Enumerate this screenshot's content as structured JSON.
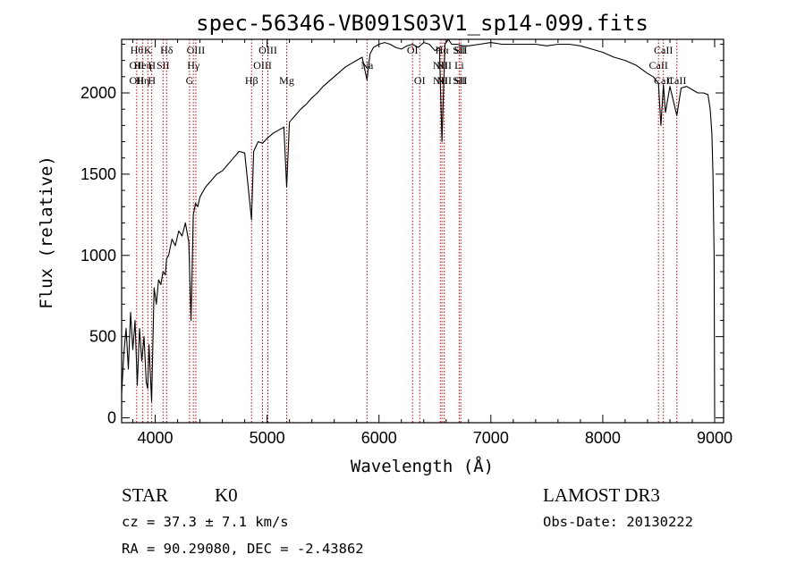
{
  "chart_data": {
    "type": "line",
    "title": "spec-56346-VB091S03V1_sp14-099.fits",
    "xlabel": "Wavelength (Å)",
    "ylabel": "Flux (relative)",
    "xlim": [
      3700,
      9080
    ],
    "ylim": [
      -30,
      2330
    ],
    "x_ticks": [
      4000,
      5000,
      6000,
      7000,
      8000,
      9000
    ],
    "y_ticks": [
      0,
      500,
      1000,
      1500,
      2000
    ],
    "grid": false,
    "line_color": "#000000",
    "marker_color": "#cc0000",
    "series": [
      {
        "x": [
          3700,
          3720,
          3740,
          3760,
          3780,
          3800,
          3820,
          3840,
          3860,
          3880,
          3900,
          3920,
          3933,
          3945,
          3968,
          3990,
          4010,
          4030,
          4050,
          4070,
          4090,
          4102,
          4120,
          4150,
          4180,
          4210,
          4240,
          4270,
          4300,
          4320,
          4340,
          4360,
          4380,
          4400,
          4450,
          4500,
          4550,
          4600,
          4650,
          4700,
          4750,
          4800,
          4861,
          4880,
          4920,
          4960,
          5000,
          5050,
          5100,
          5150,
          5175,
          5200,
          5250,
          5300,
          5350,
          5400,
          5450,
          5500,
          5550,
          5600,
          5650,
          5700,
          5750,
          5800,
          5850,
          5893,
          5920,
          5950,
          6000,
          6050,
          6100,
          6150,
          6200,
          6250,
          6300,
          6350,
          6400,
          6450,
          6500,
          6540,
          6563,
          6590,
          6620,
          6650,
          6700,
          6750,
          6800,
          6900,
          7000,
          7100,
          7200,
          7300,
          7400,
          7500,
          7600,
          7700,
          7800,
          7900,
          8000,
          8100,
          8200,
          8300,
          8400,
          8450,
          8498,
          8520,
          8542,
          8560,
          8600,
          8662,
          8700,
          8750,
          8800,
          8850,
          8900,
          8940,
          8960,
          8975,
          8985,
          8995,
          9000
        ],
        "y": [
          150,
          400,
          550,
          300,
          650,
          420,
          600,
          200,
          550,
          350,
          500,
          220,
          180,
          450,
          100,
          800,
          700,
          850,
          820,
          900,
          880,
          980,
          1000,
          1100,
          1060,
          1150,
          1120,
          1200,
          1080,
          600,
          1250,
          1320,
          1300,
          1360,
          1420,
          1460,
          1500,
          1520,
          1560,
          1600,
          1640,
          1630,
          1220,
          1640,
          1700,
          1690,
          1720,
          1750,
          1770,
          1790,
          1420,
          1820,
          1860,
          1900,
          1930,
          1970,
          2000,
          2040,
          2070,
          2100,
          2130,
          2160,
          2180,
          2200,
          2220,
          2080,
          2240,
          2280,
          2300,
          2310,
          2300,
          2280,
          2270,
          2290,
          2300,
          2280,
          2310,
          2300,
          2260,
          2280,
          1700,
          2300,
          2330,
          2300,
          2300,
          2290,
          2290,
          2300,
          2310,
          2300,
          2300,
          2300,
          2300,
          2290,
          2300,
          2300,
          2290,
          2270,
          2250,
          2220,
          2200,
          2170,
          2120,
          2100,
          2060,
          1800,
          2050,
          1880,
          2040,
          1860,
          2030,
          2040,
          2020,
          2000,
          2000,
          1990,
          1900,
          1750,
          1500,
          1000,
          0
        ]
      }
    ],
    "line_markers": [
      {
        "x": 3835,
        "labels": [
          "Hθ",
          "OII",
          "OII"
        ]
      },
      {
        "x": 3889,
        "labels": [
          "",
          "Heη",
          "Hη"
        ]
      },
      {
        "x": 3934,
        "labels": [
          "K",
          "",
          ""
        ]
      },
      {
        "x": 3969,
        "labels": [
          "",
          "H",
          "H"
        ]
      },
      {
        "x": 4070,
        "labels": [
          "",
          "SII",
          ""
        ]
      },
      {
        "x": 4102,
        "labels": [
          "Hδ",
          "",
          ""
        ]
      },
      {
        "x": 4307,
        "labels": [
          "",
          "",
          "G"
        ]
      },
      {
        "x": 4341,
        "labels": [
          "",
          "Hγ",
          ""
        ]
      },
      {
        "x": 4363,
        "labels": [
          "OIII",
          "",
          ""
        ]
      },
      {
        "x": 4861,
        "labels": [
          "",
          "",
          "Hβ"
        ]
      },
      {
        "x": 4959,
        "labels": [
          "",
          "OIII",
          ""
        ]
      },
      {
        "x": 5007,
        "labels": [
          "OIII",
          "",
          ""
        ]
      },
      {
        "x": 5175,
        "labels": [
          "",
          "",
          "Mg"
        ]
      },
      {
        "x": 5893,
        "labels": [
          "",
          "Na",
          ""
        ]
      },
      {
        "x": 6300,
        "labels": [
          "OI",
          "",
          ""
        ]
      },
      {
        "x": 6364,
        "labels": [
          "",
          "",
          "OI"
        ]
      },
      {
        "x": 6548,
        "labels": [
          "",
          "NII",
          "NII"
        ]
      },
      {
        "x": 6563,
        "labels": [
          "Hα",
          "",
          ""
        ]
      },
      {
        "x": 6583,
        "labels": [
          "",
          "NII",
          "NII"
        ]
      },
      {
        "x": 6717,
        "labels": [
          "SII",
          "Li",
          "SII"
        ]
      },
      {
        "x": 6731,
        "labels": [
          "SII",
          "",
          "SII"
        ]
      },
      {
        "x": 8498,
        "labels": [
          "",
          "CaII",
          ""
        ]
      },
      {
        "x": 8542,
        "labels": [
          "CaII",
          "",
          "CaII"
        ]
      },
      {
        "x": 8662,
        "labels": [
          "",
          "",
          "CaII"
        ]
      }
    ]
  },
  "info": {
    "class": "STAR",
    "subclass": "K0",
    "survey": "LAMOST DR3",
    "cz": "cz = 37.3 ± 7.1 km/s",
    "obs_date": "Obs-Date: 20130222",
    "radec": "RA =  90.29080, DEC =  -2.43862"
  }
}
